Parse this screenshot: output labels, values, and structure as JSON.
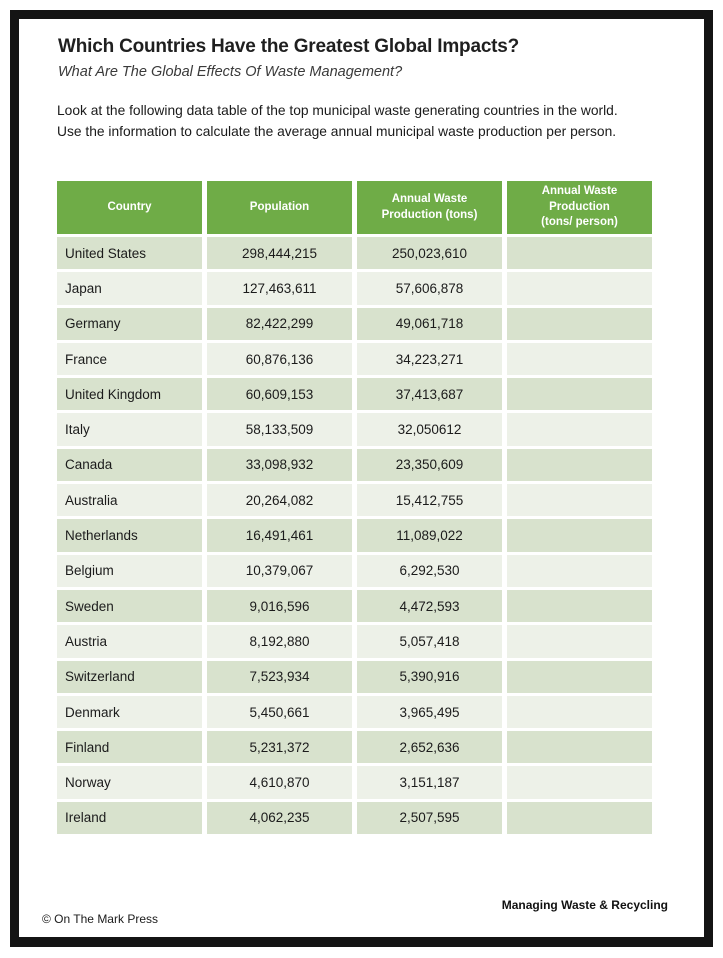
{
  "page": {
    "title": "Which Countries Have the Greatest Global Impacts?",
    "subtitle": "What Are The Global Effects Of Waste Management?",
    "instructions": "Look at the following data table of the top municipal waste generating countries in the world. Use the information to calculate the average annual municipal waste production per person."
  },
  "table": {
    "columns": [
      "Country",
      "Population",
      "Annual Waste\nProduction (tons)",
      "Annual Waste\nProduction\n(tons/ person)"
    ],
    "rows": [
      {
        "country": "United States",
        "population": "298,444,215",
        "waste_tons": "250,023,610",
        "waste_per_person": ""
      },
      {
        "country": "Japan",
        "population": "127,463,611",
        "waste_tons": "57,606,878",
        "waste_per_person": ""
      },
      {
        "country": "Germany",
        "population": "82,422,299",
        "waste_tons": "49,061,718",
        "waste_per_person": ""
      },
      {
        "country": "France",
        "population": "60,876,136",
        "waste_tons": "34,223,271",
        "waste_per_person": ""
      },
      {
        "country": "United Kingdom",
        "population": "60,609,153",
        "waste_tons": "37,413,687",
        "waste_per_person": ""
      },
      {
        "country": "Italy",
        "population": "58,133,509",
        "waste_tons": "32,050612",
        "waste_per_person": ""
      },
      {
        "country": "Canada",
        "population": "33,098,932",
        "waste_tons": "23,350,609",
        "waste_per_person": ""
      },
      {
        "country": "Australia",
        "population": "20,264,082",
        "waste_tons": "15,412,755",
        "waste_per_person": ""
      },
      {
        "country": "Netherlands",
        "population": "16,491,461",
        "waste_tons": "11,089,022",
        "waste_per_person": ""
      },
      {
        "country": "Belgium",
        "population": "10,379,067",
        "waste_tons": "6,292,530",
        "waste_per_person": ""
      },
      {
        "country": "Sweden",
        "population": "9,016,596",
        "waste_tons": "4,472,593",
        "waste_per_person": ""
      },
      {
        "country": "Austria",
        "population": "8,192,880",
        "waste_tons": "5,057,418",
        "waste_per_person": ""
      },
      {
        "country": "Switzerland",
        "population": "7,523,934",
        "waste_tons": "5,390,916",
        "waste_per_person": ""
      },
      {
        "country": "Denmark",
        "population": "5,450,661",
        "waste_tons": "3,965,495",
        "waste_per_person": ""
      },
      {
        "country": "Finland",
        "population": "5,231,372",
        "waste_tons": "2,652,636",
        "waste_per_person": ""
      },
      {
        "country": "Norway",
        "population": "4,610,870",
        "waste_tons": "3,151,187",
        "waste_per_person": ""
      },
      {
        "country": "Ireland",
        "population": "4,062,235",
        "waste_tons": "2,507,595",
        "waste_per_person": ""
      }
    ]
  },
  "footer": {
    "copyright": "© On The Mark Press",
    "series": "Managing Waste & Recycling"
  },
  "colors": {
    "header_green": "#6FAC47",
    "row_band_dark": "#D8E2CD",
    "row_band_light": "#EDF1E8",
    "frame_black": "#141414"
  }
}
